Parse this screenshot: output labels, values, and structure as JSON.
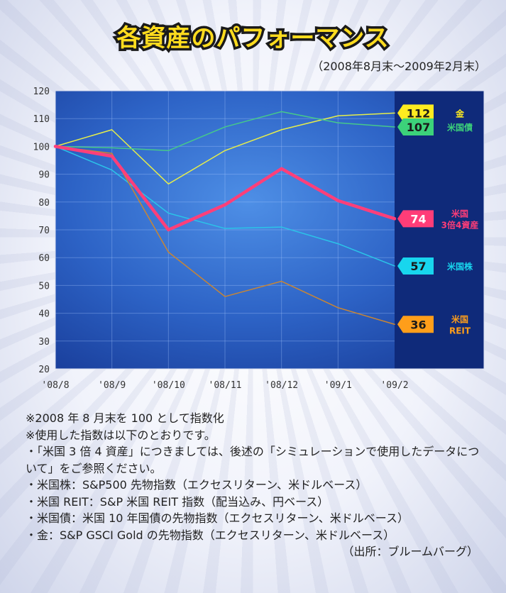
{
  "header": {
    "title": "各資産のパフォーマンス",
    "subtitle": "（2008年8月末～2009年2月末）"
  },
  "chart_data": {
    "type": "line",
    "categories": [
      "'08/8",
      "'08/9",
      "'08/10",
      "'08/11",
      "'08/12",
      "'09/1",
      "'09/2"
    ],
    "ylim": [
      20,
      120
    ],
    "yticks": [
      20,
      30,
      40,
      50,
      60,
      70,
      80,
      90,
      100,
      110,
      120
    ],
    "grid": true,
    "series": [
      {
        "name": "金",
        "values": [
          100,
          106,
          86.5,
          98.5,
          106,
          111,
          112
        ],
        "color": "#e6ee4a",
        "label_color": "#ffec20",
        "badge_text": "112",
        "badge_text_color": "#1a1a1a",
        "name_lines": [
          "金"
        ],
        "width": 1.5
      },
      {
        "name": "米国債",
        "values": [
          100,
          99.5,
          98.5,
          107,
          112.5,
          108.5,
          107
        ],
        "color": "#46c98a",
        "label_color": "#3cd27a",
        "badge_text": "107",
        "badge_text_color": "#1a1a1a",
        "name_lines": [
          "米国債"
        ],
        "width": 1.5
      },
      {
        "name": "米国3倍4資産",
        "values": [
          100,
          96.5,
          70,
          79,
          92,
          80.5,
          74
        ],
        "color": "#ff3f7a",
        "label_color": "#ff3d78",
        "badge_text": "74",
        "badge_text_color": "#ffffff",
        "name_lines": [
          "米国",
          "3倍4資産"
        ],
        "width": 4.5
      },
      {
        "name": "米国株",
        "values": [
          100,
          91.5,
          76,
          70.5,
          71,
          65,
          57
        ],
        "color": "#2bc4e8",
        "label_color": "#18d6ee",
        "badge_text": "57",
        "badge_text_color": "#1a1a1a",
        "name_lines": [
          "米国株"
        ],
        "width": 1.5
      },
      {
        "name": "米国REIT",
        "values": [
          100,
          97.5,
          62,
          46,
          51.5,
          42,
          36
        ],
        "color": "#c98634",
        "label_color": "#ff9e1a",
        "badge_text": "36",
        "badge_text_color": "#1a1a1a",
        "name_lines": [
          "米国",
          "REIT"
        ],
        "width": 1.5
      }
    ]
  },
  "notes": [
    "※2008 年 8 月末を 100 として指数化",
    "※使用した指数は以下のとおりです。",
    "・「米国 3 倍 4 資産」につきましては、後述の「シミュレーションで使用したデータについて」をご参照ください。",
    "・米国株：S&P500 先物指数（エクセスリターン、米ドルベース）",
    "・米国 REIT：S&P 米国 REIT 指数（配当込み、円ベース）",
    "・米国債：米国 10 年国債の先物指数（エクセスリターン、米ドルベース）",
    "・金：S&P GSCI Gold の先物指数（エクセスリターン、米ドルベース）"
  ],
  "source": "（出所：ブルームバーグ）"
}
